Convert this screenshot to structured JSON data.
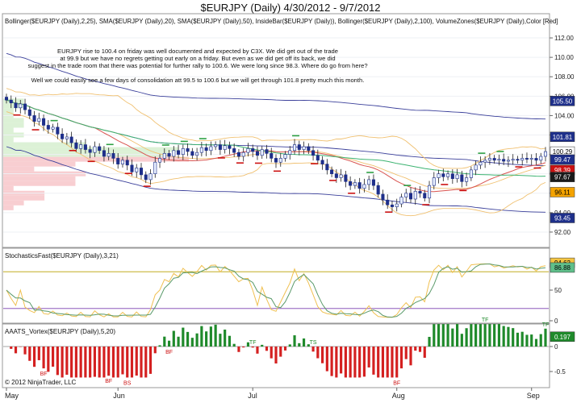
{
  "title": "$EURJPY (Daily)  4/30/2012 - 9/7/2012",
  "indicator_line": "Bollinger($EURJPY (Daily),2,25), SMA($EURJPY (Daily),20), SMA($EURJPY (Daily),50), InsideBar($EURJPY (Daily)), Bollinger($EURJPY (Daily),2,100), VolumeZones($EURJPY (Daily),Color [Red]",
  "commentary": [
    "EURJPY rise to 100.4 on friday was well documented and expected by C3X. We did get out of the trade",
    "at 99.9 but we have no regrets getting out early on a friday. But even as we did get off its back, we did",
    "suggest in the trade room that there was potential for further rally to 100.6. We were long since 98.3. Where do go from here?",
    "Well we could easily see a few days of consolidation att 99.5 to 100.6 but we will get through 101.8 pretty much this month."
  ],
  "stoch_label": "StochasticsFast($EURJPY (Daily),3,21)",
  "vortex_label": "AAATS_Vortex($EURJPY (Daily),5,20)",
  "copyright": "© 2012 NinjaTrader, LLC",
  "price_axis_ticks": [
    "112.00",
    "110.00",
    "108.00",
    "106.00",
    "104.00",
    "102.00",
    "100.00",
    "98.00",
    "96.00",
    "94.00",
    "92.00"
  ],
  "stoch_axis_ticks": [
    "50",
    "0"
  ],
  "vortex_axis_ticks": [
    "0",
    "-0.5"
  ],
  "month_labels": [
    "May",
    "Jun",
    "Jul",
    "Aug",
    "Sep"
  ],
  "price_badges": [
    {
      "text": "105.50",
      "value": 105.5,
      "bg": "#1e2f8a",
      "fg": "#ffffff"
    },
    {
      "text": "101.81",
      "value": 101.81,
      "bg": "#1e2f8a",
      "fg": "#ffffff"
    },
    {
      "text": "100.29",
      "value": 100.29,
      "bg": "#ffffff",
      "fg": "#000000"
    },
    {
      "text": "99.47",
      "value": 99.47,
      "bg": "#1e2f8a",
      "fg": "#ffffff"
    },
    {
      "text": "98.39",
      "value": 98.39,
      "bg": "#cc1111",
      "fg": "#ffffff"
    },
    {
      "text": "97.67",
      "value": 97.67,
      "bg": "#1a1a1a",
      "fg": "#ffffff"
    },
    {
      "text": "96.11",
      "value": 96.11,
      "bg": "#f4a300",
      "fg": "#000000"
    },
    {
      "text": "93.45",
      "value": 93.45,
      "bg": "#1e2f8a",
      "fg": "#ffffff"
    }
  ],
  "stoch_badges": [
    {
      "text": "94.62",
      "value": 94.62,
      "bg": "#f5c542",
      "fg": "#000000"
    },
    {
      "text": "86.88",
      "value": 86.88,
      "bg": "#5fbf8a",
      "fg": "#000000"
    }
  ],
  "vortex_badges": [
    {
      "text": "0.197",
      "value": 0.197,
      "bg": "#1f8a2b",
      "fg": "#ffffff"
    }
  ],
  "vortex_markers": [
    {
      "text": "BF",
      "index": 8,
      "where": "below"
    },
    {
      "text": "BF",
      "index": 22,
      "where": "below"
    },
    {
      "text": "BS",
      "index": 26,
      "where": "below"
    },
    {
      "text": "BF",
      "index": 35,
      "where": "below"
    },
    {
      "text": "TF",
      "index": 53,
      "where": "above"
    },
    {
      "text": "TS",
      "index": 66,
      "where": "above"
    },
    {
      "text": "BF",
      "index": 84,
      "where": "below"
    },
    {
      "text": "TF",
      "index": 103,
      "where": "above"
    },
    {
      "text": "TF",
      "index": 117,
      "where": "above"
    }
  ],
  "colors": {
    "up_candle": "#e8f0ff",
    "down_candle": "#1e2f8a",
    "inside_up": "#2ea043",
    "inside_down": "#8b1a1a",
    "bollinger25": "#f0c070",
    "bollinger100": "#3a3f9a",
    "sma20": "#d9534f",
    "sma50": "#3cb371",
    "stoch_d": "#5a9a6a",
    "stoch_k": "#f0c050",
    "vortex_up": "#1f8a2b",
    "vortex_down": "#d42020"
  },
  "chart_data": {
    "type": "candlestick",
    "symbol": "$EURJPY",
    "period": "Daily",
    "date_range": "4/30/2012 - 9/7/2012",
    "ylim": [
      91.0,
      113.0
    ],
    "closes": [
      105.6,
      105.3,
      104.8,
      105.2,
      104.6,
      104.0,
      103.4,
      103.7,
      103.0,
      102.6,
      102.8,
      102.1,
      101.6,
      101.8,
      101.2,
      100.6,
      101.0,
      100.5,
      100.2,
      100.8,
      100.4,
      99.8,
      100.1,
      99.6,
      99.0,
      99.4,
      98.9,
      98.2,
      98.6,
      97.9,
      97.4,
      98.0,
      99.2,
      99.6,
      100.1,
      99.8,
      100.4,
      100.0,
      100.6,
      100.3,
      99.9,
      100.2,
      100.7,
      100.4,
      100.8,
      101.0,
      100.5,
      100.9,
      100.6,
      100.2,
      99.8,
      100.2,
      100.6,
      100.3,
      99.9,
      100.5,
      100.1,
      99.6,
      99.2,
      99.6,
      100.0,
      100.4,
      101.0,
      100.5,
      100.8,
      100.4,
      99.9,
      99.4,
      99.0,
      98.4,
      98.0,
      97.6,
      97.9,
      97.2,
      96.8,
      97.1,
      96.5,
      96.9,
      97.4,
      96.8,
      95.9,
      95.3,
      94.8,
      94.6,
      94.9,
      95.6,
      96.0,
      95.4,
      96.2,
      96.0,
      95.5,
      96.8,
      97.6,
      98.0,
      97.7,
      98.0,
      97.5,
      97.9,
      97.2,
      97.6,
      98.4,
      98.9,
      99.2,
      99.4,
      99.6,
      99.4,
      99.5,
      99.3,
      99.4,
      99.5,
      99.4,
      99.6,
      99.5,
      99.6,
      99.4,
      99.8,
      100.29
    ],
    "series_notes": "Reconstructed approximately from the screenshot; volume zones, SMA(20), SMA(50), Bollinger(25) and Bollinger(100) overlays are computed in-page from these closes."
  }
}
